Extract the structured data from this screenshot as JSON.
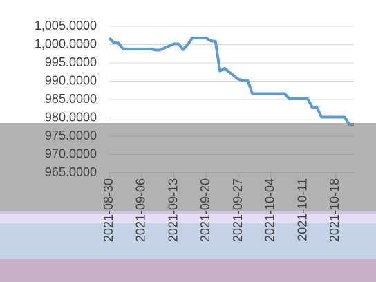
{
  "chart_data": {
    "type": "line",
    "x": [
      "2021-08-30",
      "2021-08-31",
      "2021-09-01",
      "2021-09-02",
      "2021-09-03",
      "2021-09-06",
      "2021-09-07",
      "2021-09-08",
      "2021-09-09",
      "2021-09-10",
      "2021-09-13",
      "2021-09-14",
      "2021-09-15",
      "2021-09-16",
      "2021-09-17",
      "2021-09-20",
      "2021-09-21",
      "2021-09-22",
      "2021-09-23",
      "2021-09-24",
      "2021-09-27",
      "2021-09-28",
      "2021-09-29",
      "2021-09-30",
      "2021-10-01",
      "2021-10-04",
      "2021-10-05",
      "2021-10-06",
      "2021-10-07",
      "2021-10-08",
      "2021-10-11",
      "2021-10-12",
      "2021-10-13",
      "2021-10-14",
      "2021-10-15",
      "2021-10-18",
      "2021-10-19",
      "2021-10-20",
      "2021-10-21",
      "2021-10-22"
    ],
    "series": [
      {
        "color": "#5b9bd5",
        "values": [
          1001.8,
          1000.5,
          1000.4,
          998.8,
          998.8,
          998.8,
          998.8,
          998.8,
          998.5,
          998.5,
          1000.2,
          1000.2,
          998.6,
          1000.0,
          1001.8,
          1001.8,
          1001.0,
          1000.9,
          992.8,
          993.5,
          990.5,
          990.2,
          990.2,
          986.6,
          986.6,
          986.6,
          986.6,
          986.6,
          986.6,
          985.2,
          985.2,
          985.2,
          982.8,
          982.8,
          980.2,
          980.2,
          980.2,
          980.2,
          978.2,
          978.2
        ]
      }
    ],
    "xlim": [
      "2021-08-30",
      "2021-10-22"
    ],
    "xticks": [
      "2021-08-30",
      "2021-09-06",
      "2021-09-13",
      "2021-09-20",
      "2021-09-27",
      "2021-10-04",
      "2021-10-11",
      "2021-10-18"
    ],
    "ylim": [
      965,
      1005
    ],
    "yticks": [
      {
        "value": 965,
        "label": "965.0000"
      },
      {
        "value": 970,
        "label": "970.0000"
      },
      {
        "value": 975,
        "label": "975.0000"
      },
      {
        "value": 980,
        "label": "980.0000"
      },
      {
        "value": 985,
        "label": "985.0000"
      },
      {
        "value": 990,
        "label": "990.0000"
      },
      {
        "value": 995,
        "label": "995.0000"
      },
      {
        "value": 1000,
        "label": "1,000.0000"
      },
      {
        "value": 1005,
        "label": "1,005.0000"
      }
    ],
    "grid": true
  }
}
